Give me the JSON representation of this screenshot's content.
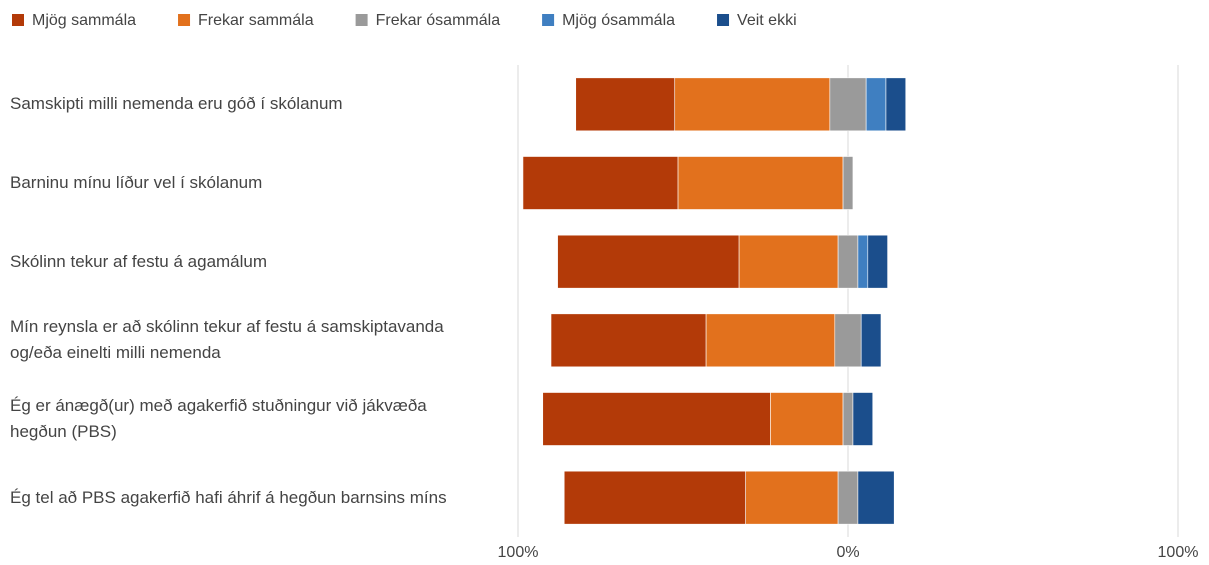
{
  "chart_data": {
    "type": "diverging_stacked_bar",
    "categories": [
      "Samskipti milli nemenda eru góð í skólanum",
      "Barninu mínu líður vel í skólanum",
      "Skólinn tekur af festu á agamálum",
      "Mín reynsla er að skólinn tekur af festu á samskiptavanda og/eða einelti milli nemenda",
      "Ég er ánægð(ur) með agakerfið stuðningur við jákvæða hegðun (PBS)",
      "Ég tel að PBS agakerfið hafi áhrif á hegðun barnsins míns"
    ],
    "series": [
      {
        "name": "Mjög sammála",
        "color": "#b33a08",
        "values": [
          30,
          47,
          55,
          47,
          69,
          55
        ]
      },
      {
        "name": "Frekar sammála",
        "color": "#e2711d",
        "values": [
          47,
          50,
          30,
          39,
          22,
          28
        ]
      },
      {
        "name": "Frekar ósammála",
        "color": "#9a9a9a",
        "values": [
          11,
          3,
          6,
          8,
          3,
          6
        ]
      },
      {
        "name": "Mjög ósammála",
        "color": "#3f7fc1",
        "values": [
          6,
          0,
          3,
          0,
          0,
          0
        ]
      },
      {
        "name": "Veit ekki",
        "color": "#1b4e8c",
        "values": [
          6,
          0,
          6,
          6,
          6,
          11
        ]
      }
    ],
    "xlim": [
      -100,
      100
    ],
    "xticks": [
      {
        "value": -100,
        "label": "100%"
      },
      {
        "value": 0,
        "label": "0%"
      },
      {
        "value": 100,
        "label": "100%"
      }
    ],
    "grid": true,
    "legend": "top"
  }
}
